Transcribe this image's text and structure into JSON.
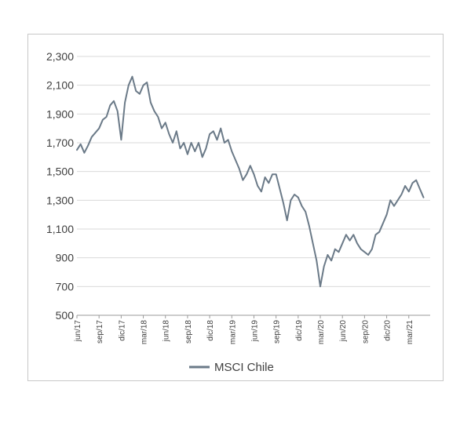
{
  "chart_data": {
    "type": "line",
    "title": "",
    "xlabel": "",
    "ylabel": "",
    "ylim": [
      500,
      2300
    ],
    "yticks": [
      500,
      700,
      900,
      "1,100",
      "1,300",
      "1,500",
      "1,700",
      "1,900",
      "2,100",
      "2,300"
    ],
    "ytick_labels": [
      "500",
      "700",
      "900",
      "1,100",
      "1,300",
      "1,500",
      "1,700",
      "1,900",
      "2,100",
      "2,300"
    ],
    "ytick_values": [
      500,
      700,
      900,
      1100,
      1300,
      1500,
      1700,
      1900,
      2100,
      2300
    ],
    "xtick_labels": [
      "jun/17",
      "sep/17",
      "dic/17",
      "mar/18",
      "jun/18",
      "sep/18",
      "dic/18",
      "mar/19",
      "jun/19",
      "sep/19",
      "dic/19",
      "mar/20",
      "jun/20",
      "sep/20",
      "dic/20",
      "mar/21"
    ],
    "x_range": [
      "2017-06",
      "2021-05"
    ],
    "grid": {
      "horizontal": true,
      "vertical": false
    },
    "legend_position": "bottom",
    "series": [
      {
        "name": "MSCI Chile",
        "color": "#6b7a88",
        "points": [
          [
            "2017-06",
            1650
          ],
          [
            "2017-06",
            1690
          ],
          [
            "2017-07",
            1630
          ],
          [
            "2017-07",
            1680
          ],
          [
            "2017-08",
            1740
          ],
          [
            "2017-08",
            1770
          ],
          [
            "2017-09",
            1800
          ],
          [
            "2017-09",
            1860
          ],
          [
            "2017-10",
            1880
          ],
          [
            "2017-10",
            1960
          ],
          [
            "2017-11",
            1990
          ],
          [
            "2017-11",
            1920
          ],
          [
            "2017-12",
            1720
          ],
          [
            "2017-12",
            1980
          ],
          [
            "2018-01",
            2100
          ],
          [
            "2018-01",
            2160
          ],
          [
            "2018-02",
            2060
          ],
          [
            "2018-02",
            2040
          ],
          [
            "2018-03",
            2100
          ],
          [
            "2018-03",
            2120
          ],
          [
            "2018-04",
            1980
          ],
          [
            "2018-04",
            1920
          ],
          [
            "2018-05",
            1880
          ],
          [
            "2018-05",
            1800
          ],
          [
            "2018-06",
            1840
          ],
          [
            "2018-06",
            1760
          ],
          [
            "2018-07",
            1700
          ],
          [
            "2018-07",
            1780
          ],
          [
            "2018-08",
            1660
          ],
          [
            "2018-08",
            1700
          ],
          [
            "2018-09",
            1620
          ],
          [
            "2018-09",
            1700
          ],
          [
            "2018-10",
            1640
          ],
          [
            "2018-10",
            1700
          ],
          [
            "2018-11",
            1600
          ],
          [
            "2018-11",
            1660
          ],
          [
            "2018-12",
            1760
          ],
          [
            "2018-12",
            1780
          ],
          [
            "2019-01",
            1720
          ],
          [
            "2019-01",
            1800
          ],
          [
            "2019-02",
            1700
          ],
          [
            "2019-02",
            1720
          ],
          [
            "2019-03",
            1640
          ],
          [
            "2019-03",
            1580
          ],
          [
            "2019-04",
            1520
          ],
          [
            "2019-04",
            1440
          ],
          [
            "2019-05",
            1480
          ],
          [
            "2019-05",
            1540
          ],
          [
            "2019-06",
            1480
          ],
          [
            "2019-06",
            1400
          ],
          [
            "2019-07",
            1360
          ],
          [
            "2019-07",
            1460
          ],
          [
            "2019-08",
            1420
          ],
          [
            "2019-08",
            1480
          ],
          [
            "2019-09",
            1480
          ],
          [
            "2019-09",
            1380
          ],
          [
            "2019-10",
            1280
          ],
          [
            "2019-10",
            1160
          ],
          [
            "2019-11",
            1300
          ],
          [
            "2019-11",
            1340
          ],
          [
            "2019-12",
            1320
          ],
          [
            "2019-12",
            1260
          ],
          [
            "2020-01",
            1220
          ],
          [
            "2020-01",
            1120
          ],
          [
            "2020-02",
            1000
          ],
          [
            "2020-02",
            880
          ],
          [
            "2020-03",
            700
          ],
          [
            "2020-03",
            840
          ],
          [
            "2020-04",
            920
          ],
          [
            "2020-04",
            880
          ],
          [
            "2020-05",
            960
          ],
          [
            "2020-05",
            940
          ],
          [
            "2020-06",
            1000
          ],
          [
            "2020-06",
            1060
          ],
          [
            "2020-07",
            1020
          ],
          [
            "2020-07",
            1060
          ],
          [
            "2020-08",
            1000
          ],
          [
            "2020-08",
            960
          ],
          [
            "2020-09",
            940
          ],
          [
            "2020-09",
            920
          ],
          [
            "2020-10",
            960
          ],
          [
            "2020-10",
            1060
          ],
          [
            "2020-11",
            1080
          ],
          [
            "2020-11",
            1140
          ],
          [
            "2020-12",
            1200
          ],
          [
            "2020-12",
            1300
          ],
          [
            "2021-01",
            1260
          ],
          [
            "2021-01",
            1300
          ],
          [
            "2021-02",
            1340
          ],
          [
            "2021-02",
            1400
          ],
          [
            "2021-03",
            1360
          ],
          [
            "2021-03",
            1420
          ],
          [
            "2021-04",
            1440
          ],
          [
            "2021-04",
            1380
          ],
          [
            "2021-05",
            1320
          ]
        ]
      }
    ]
  },
  "legend": {
    "label": "MSCI Chile"
  }
}
